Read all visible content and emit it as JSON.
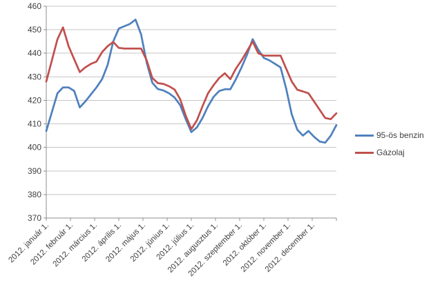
{
  "chart_data": {
    "type": "line",
    "title": "",
    "xlabel": "",
    "ylabel": "",
    "ylim": [
      370,
      460
    ],
    "grid": true,
    "legend_position": "right",
    "y_ticks": [
      370,
      380,
      390,
      400,
      410,
      420,
      430,
      440,
      450,
      460
    ],
    "x_tick_labels": [
      "2012. január 1.",
      "2012. február 1.",
      "2012. március 1.",
      "2012. április 1.",
      "2012. május 1.",
      "2012. június 1.",
      "2012. július 1.",
      "2012. augusztus 1.",
      "2012. szeptember 1.",
      "2012. október 1.",
      "2012. november 1.",
      "2012. december 1."
    ],
    "x_unit": "weekly samples, Jan 1 - Dec 31 2012",
    "series": [
      {
        "name": "95-ös benzin",
        "color": "#4F81BD",
        "values": [
          407,
          415,
          423,
          425.5,
          425.5,
          424,
          417,
          419.5,
          422.5,
          425.5,
          429,
          435,
          445,
          450.5,
          451.5,
          452.5,
          454.3,
          448,
          436,
          427.5,
          424.8,
          424.2,
          423,
          421.2,
          418,
          412,
          406.5,
          408.5,
          412.5,
          417.5,
          421.5,
          424,
          424.7,
          424.7,
          429,
          434,
          439.5,
          446,
          441.5,
          438,
          437,
          435.5,
          434,
          425,
          414,
          407.5,
          405,
          407,
          404.5,
          402.5,
          402,
          405,
          409.5
        ]
      },
      {
        "name": "Gázolaj",
        "color": "#C0504D",
        "values": [
          428,
          437,
          446,
          451,
          443,
          437.5,
          432,
          434,
          435.5,
          436.5,
          440.5,
          443,
          444.8,
          442.3,
          442,
          442,
          442,
          442,
          437,
          429.5,
          427.3,
          427,
          426,
          424.6,
          420.5,
          413.5,
          407.8,
          411.5,
          417.5,
          423,
          426.5,
          429.5,
          431.5,
          429,
          433.5,
          437,
          441,
          445,
          440,
          439,
          439,
          439,
          439,
          433.5,
          428,
          424.5,
          423.8,
          423,
          419.5,
          416,
          412.5,
          412,
          414.5
        ]
      }
    ],
    "colors": {
      "gridline": "#C6C6C6",
      "axis": "#8C8C8C",
      "text": "#404040",
      "background": "#FFFFFF"
    }
  }
}
